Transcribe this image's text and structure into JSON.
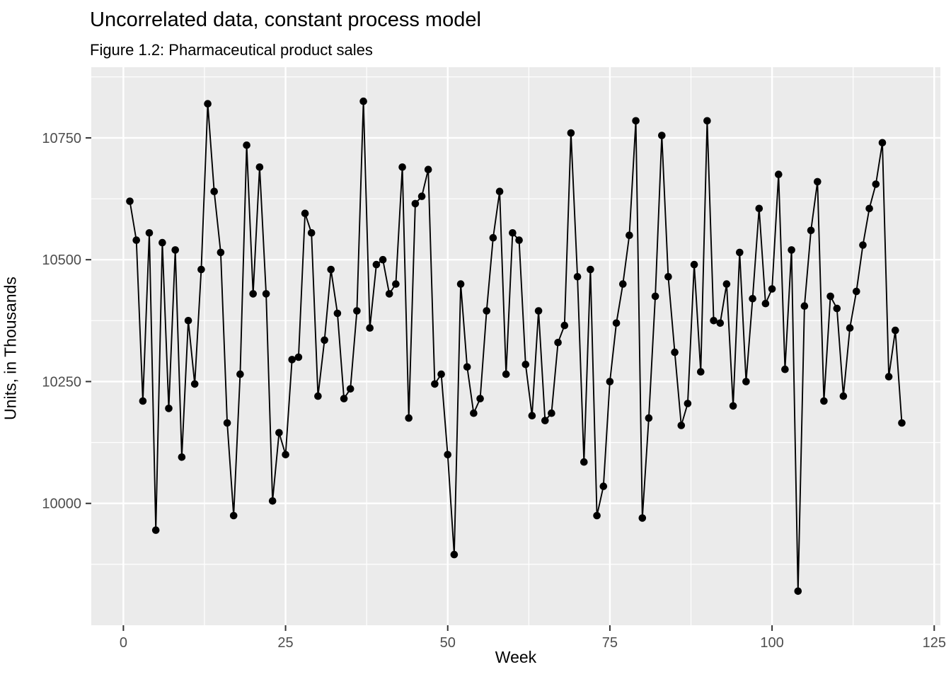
{
  "chart_data": {
    "type": "line",
    "title": "Uncorrelated data, constant process model",
    "subtitle": "Figure 1.2: Pharmaceutical product sales",
    "xlabel": "Week",
    "ylabel": "Units, in Thousands",
    "x": [
      1,
      2,
      3,
      4,
      5,
      6,
      7,
      8,
      9,
      10,
      11,
      12,
      13,
      14,
      15,
      16,
      17,
      18,
      19,
      20,
      21,
      22,
      23,
      24,
      25,
      26,
      27,
      28,
      29,
      30,
      31,
      32,
      33,
      34,
      35,
      36,
      37,
      38,
      39,
      40,
      41,
      42,
      43,
      44,
      45,
      46,
      47,
      48,
      49,
      50,
      51,
      52,
      53,
      54,
      55,
      56,
      57,
      58,
      59,
      60,
      61,
      62,
      63,
      64,
      65,
      66,
      67,
      68,
      69,
      70,
      71,
      72,
      73,
      74,
      75,
      76,
      77,
      78,
      79,
      80,
      81,
      82,
      83,
      84,
      85,
      86,
      87,
      88,
      89,
      90,
      91,
      92,
      93,
      94,
      95,
      96,
      97,
      98,
      99,
      100,
      101,
      102,
      103,
      104,
      105,
      106,
      107,
      108,
      109,
      110,
      111,
      112,
      113,
      114,
      115,
      116,
      117,
      118,
      119,
      120
    ],
    "values": [
      10620,
      10540,
      10210,
      10555,
      9945,
      10535,
      10195,
      10520,
      10095,
      10375,
      10245,
      10480,
      10820,
      10640,
      10515,
      10165,
      9975,
      10265,
      10735,
      10430,
      10690,
      10430,
      10005,
      10145,
      10100,
      10295,
      10300,
      10595,
      10555,
      10220,
      10335,
      10480,
      10390,
      10215,
      10235,
      10395,
      10825,
      10360,
      10490,
      10500,
      10430,
      10450,
      10690,
      10175,
      10615,
      10630,
      10685,
      10245,
      10265,
      10100,
      9895,
      10450,
      10280,
      10185,
      10215,
      10395,
      10545,
      10640,
      10265,
      10555,
      10540,
      10285,
      10180,
      10395,
      10170,
      10185,
      10330,
      10365,
      10760,
      10465,
      10085,
      10480,
      9975,
      10035,
      10250,
      10370,
      10450,
      10550,
      10785,
      9970,
      10175,
      10425,
      10755,
      10465,
      10310,
      10160,
      10205,
      10490,
      10270,
      10785,
      10375,
      10370,
      10450,
      10200,
      10515,
      10250,
      10420,
      10605,
      10410,
      10440,
      10675,
      10275,
      10520,
      9820,
      10405,
      10560,
      10660,
      10210,
      10425,
      10400,
      10220,
      10360,
      10435,
      10530,
      10605,
      10655,
      10740,
      10260,
      10355,
      10165
    ],
    "x_ticks": [
      0,
      25,
      50,
      75,
      100,
      125
    ],
    "y_ticks": [
      10000,
      10250,
      10500,
      10750
    ],
    "x_minor_ticks": [
      12.5,
      37.5,
      62.5,
      87.5,
      112.5
    ],
    "y_minor_ticks": [
      9875,
      10125,
      10375,
      10625,
      10875
    ],
    "xlim": [
      -4.95,
      125.95
    ],
    "ylim": [
      9750,
      10895
    ],
    "grid": true,
    "legend": false,
    "colors": {
      "panel_bg": "#EBEBEB",
      "grid": "#FFFFFF",
      "series": "#000000",
      "axis_text": "#4D4D4D",
      "tick_mark": "#333333",
      "title_text": "#000000"
    }
  }
}
